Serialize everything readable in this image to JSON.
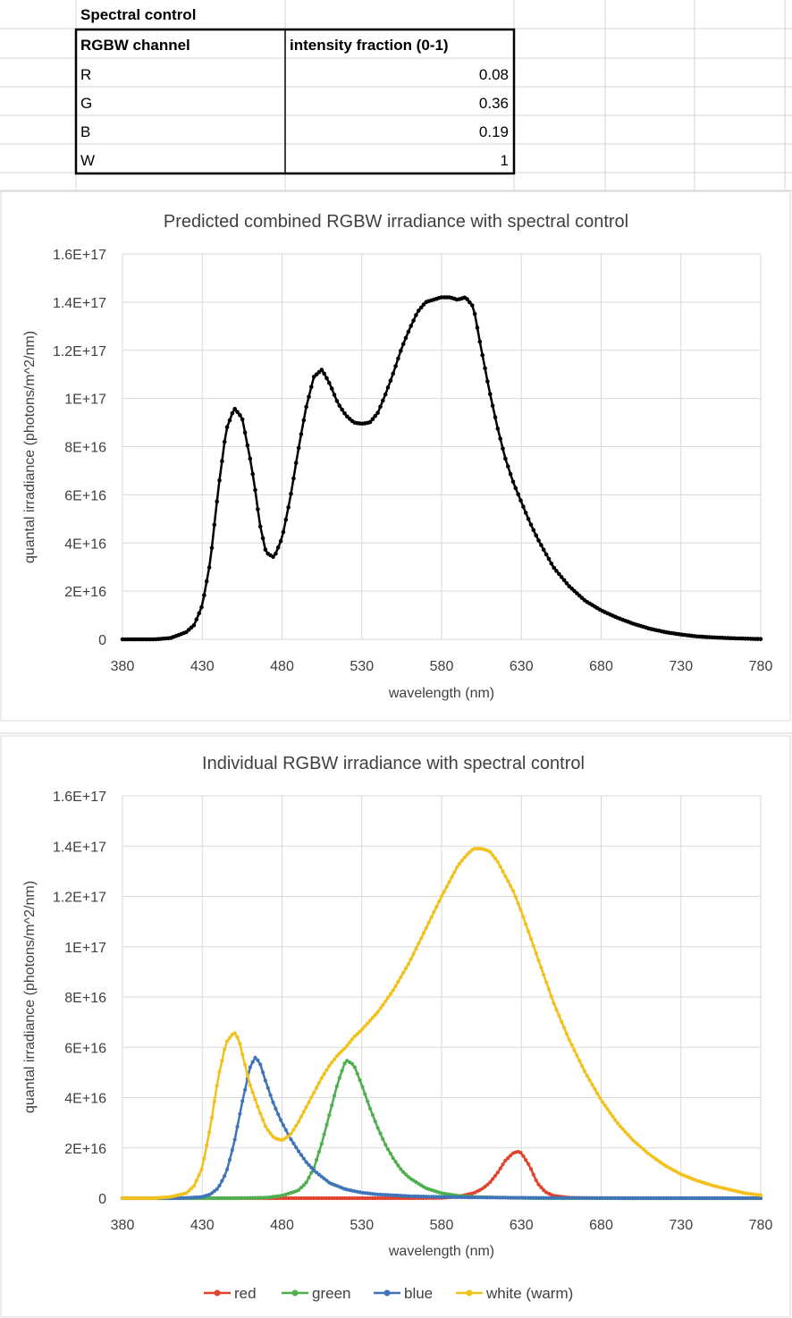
{
  "table": {
    "title": "Spectral control",
    "headers": [
      "RGBW channel",
      "intensity fraction (0-1)"
    ],
    "rows": [
      {
        "channel": "R",
        "value": "0.08"
      },
      {
        "channel": "G",
        "value": "0.36"
      },
      {
        "channel": "B",
        "value": "0.19"
      },
      {
        "channel": "W",
        "value": "1"
      }
    ]
  },
  "chart_data": [
    {
      "type": "line",
      "title": "Predicted combined RGBW irradiance with spectral control",
      "xlabel": "wavelength (nm)",
      "ylabel": "quantal irradiance (photons/m^2/nm)",
      "xlim": [
        380,
        780
      ],
      "ylim": [
        0,
        1.6e+17
      ],
      "x_ticks": [
        "380",
        "430",
        "480",
        "530",
        "580",
        "630",
        "680",
        "730",
        "780"
      ],
      "y_ticks": [
        "0",
        "2E+16",
        "4E+16",
        "6E+16",
        "8E+16",
        "1E+17",
        "1.2E+17",
        "1.4E+17",
        "1.6E+17"
      ],
      "grid": true,
      "markers": true,
      "series": [
        {
          "color": "#000000",
          "x": [
            380,
            390,
            400,
            410,
            420,
            425,
            430,
            435,
            440,
            445,
            450,
            455,
            460,
            463,
            466,
            470,
            475,
            480,
            485,
            490,
            495,
            500,
            505,
            510,
            515,
            520,
            525,
            530,
            535,
            540,
            545,
            550,
            555,
            560,
            565,
            570,
            575,
            580,
            585,
            590,
            595,
            600,
            605,
            610,
            615,
            620,
            625,
            630,
            635,
            640,
            650,
            660,
            670,
            680,
            690,
            700,
            710,
            720,
            730,
            740,
            750,
            760,
            770,
            780
          ],
          "y": [
            0,
            0,
            0,
            500000000000000.0,
            3000000000000000.0,
            6000000000000000.0,
            1.4e+16,
            3.2e+16,
            6.2e+16,
            8.7e+16,
            9.6e+16,
            9.2e+16,
            7.5e+16,
            6.3e+16,
            4.8e+16,
            3.6e+16,
            3.4e+16,
            4.2e+16,
            5.8e+16,
            7.8e+16,
            9.6e+16,
            1.09e+17,
            1.12e+17,
            1.06e+17,
            9.8e+16,
            9.3e+16,
            9e+16,
            8.95e+16,
            9e+16,
            9.4e+16,
            1.02e+17,
            1.11e+17,
            1.21e+17,
            1.29e+17,
            1.36e+17,
            1.4e+17,
            1.41e+17,
            1.42e+17,
            1.42e+17,
            1.41e+17,
            1.42e+17,
            1.38e+17,
            1.2e+17,
            1.03e+17,
            8.8e+16,
            7.5e+16,
            6.5e+16,
            5.7e+16,
            4.9e+16,
            4.2e+16,
            3e+16,
            2.2e+16,
            1.6e+16,
            1.2e+16,
            9000000000000000.0,
            6500000000000000.0,
            4500000000000000.0,
            3000000000000000.0,
            2000000000000000.0,
            1200000000000000.0,
            800000000000000.0,
            500000000000000.0,
            300000000000000.0,
            100000000000000.0
          ]
        }
      ]
    },
    {
      "type": "line",
      "title": "Individual RGBW irradiance with spectral control",
      "xlabel": "wavelength (nm)",
      "ylabel": "quantal irradiance (photons/m^2/nm)",
      "xlim": [
        380,
        780
      ],
      "ylim": [
        0,
        1.6e+17
      ],
      "x_ticks": [
        "380",
        "430",
        "480",
        "530",
        "580",
        "630",
        "680",
        "730",
        "780"
      ],
      "y_ticks": [
        "0",
        "2E+16",
        "4E+16",
        "6E+16",
        "8E+16",
        "1E+17",
        "1.2E+17",
        "1.4E+17",
        "1.6E+17"
      ],
      "grid": true,
      "markers": true,
      "legend_position": "bottom",
      "series": [
        {
          "name": "red",
          "color": "#e0422c",
          "x": [
            380,
            500,
            560,
            580,
            590,
            600,
            605,
            610,
            615,
            620,
            625,
            628,
            630,
            635,
            640,
            645,
            650,
            660,
            680,
            780
          ],
          "y": [
            0,
            0,
            0,
            100000000000000.0,
            600000000000000.0,
            2000000000000000.0,
            3500000000000000.0,
            6000000000000000.0,
            1e+16,
            1.5e+16,
            1.8e+16,
            1.85e+16,
            1.8e+16,
            1.3e+16,
            6000000000000000.0,
            2500000000000000.0,
            1000000000000000.0,
            200000000000000.0,
            0,
            0
          ]
        },
        {
          "name": "green",
          "color": "#4faf4f",
          "x": [
            380,
            450,
            470,
            480,
            490,
            495,
            500,
            505,
            510,
            515,
            520,
            525,
            530,
            535,
            540,
            545,
            550,
            555,
            560,
            570,
            580,
            590,
            600,
            620,
            640,
            780
          ],
          "y": [
            0,
            0,
            200000000000000.0,
            1000000000000000.0,
            3000000000000000.0,
            6000000000000000.0,
            1.2e+16,
            2.2e+16,
            3.4e+16,
            4.6e+16,
            5.5e+16,
            5.3e+16,
            4.5e+16,
            3.6e+16,
            2.8e+16,
            2.1e+16,
            1.55e+16,
            1.1e+16,
            8000000000000000.0,
            4000000000000000.0,
            2000000000000000.0,
            1000000000000000.0,
            500000000000000.0,
            200000000000000.0,
            0,
            0
          ]
        },
        {
          "name": "blue",
          "color": "#3f74b8",
          "x": [
            380,
            410,
            420,
            430,
            435,
            440,
            445,
            450,
            455,
            460,
            463,
            466,
            470,
            475,
            480,
            485,
            490,
            495,
            500,
            510,
            520,
            530,
            540,
            560,
            580,
            600,
            620,
            650,
            700,
            780
          ],
          "y": [
            0,
            0,
            100000000000000.0,
            500000000000000.0,
            1500000000000000.0,
            4000000000000000.0,
            1e+16,
            2.2e+16,
            3.8e+16,
            5.2e+16,
            5.6e+16,
            5.4e+16,
            4.6e+16,
            3.7e+16,
            3e+16,
            2.4e+16,
            1.9e+16,
            1.45e+16,
            1.1e+16,
            6000000000000000.0,
            3500000000000000.0,
            2200000000000000.0,
            1500000000000000.0,
            800000000000000.0,
            500000000000000.0,
            300000000000000.0,
            200000000000000.0,
            100000000000000.0,
            0,
            0
          ]
        },
        {
          "name": "white (warm)",
          "color": "#f2c11c",
          "x": [
            380,
            400,
            410,
            420,
            425,
            430,
            435,
            440,
            445,
            450,
            453,
            456,
            460,
            465,
            470,
            475,
            480,
            485,
            490,
            495,
            500,
            505,
            510,
            515,
            520,
            525,
            530,
            540,
            550,
            560,
            570,
            580,
            590,
            595,
            600,
            605,
            610,
            615,
            620,
            625,
            630,
            640,
            650,
            660,
            670,
            680,
            690,
            700,
            710,
            720,
            730,
            740,
            750,
            760,
            770,
            780
          ],
          "y": [
            0,
            0,
            500000000000000.0,
            2000000000000000.0,
            5000000000000000.0,
            1.2e+16,
            2.8e+16,
            4.8e+16,
            6.2e+16,
            6.6e+16,
            6.3e+16,
            5.5e+16,
            4.5e+16,
            3.6e+16,
            2.8e+16,
            2.4e+16,
            2.3e+16,
            2.5e+16,
            3e+16,
            3.6e+16,
            4.2e+16,
            4.8e+16,
            5.3e+16,
            5.7e+16,
            6e+16,
            6.4e+16,
            6.7e+16,
            7.4e+16,
            8.3e+16,
            9.4e+16,
            1.07e+17,
            1.2e+17,
            1.32e+17,
            1.36e+17,
            1.39e+17,
            1.39e+17,
            1.38e+17,
            1.34e+17,
            1.28e+17,
            1.22e+17,
            1.14e+17,
            9.6e+16,
            7.8e+16,
            6.3e+16,
            5e+16,
            3.9e+16,
            3e+16,
            2.3e+16,
            1.75e+16,
            1.3e+16,
            9500000000000000.0,
            7000000000000000.0,
            5000000000000000.0,
            3500000000000000.0,
            2000000000000000.0,
            1200000000000000.0
          ]
        }
      ]
    }
  ]
}
